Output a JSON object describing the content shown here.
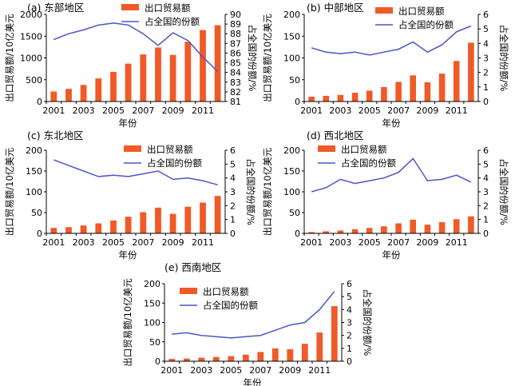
{
  "colors": {
    "bar": "#f05a28",
    "line": "#4a55c8",
    "axis": "#000000"
  },
  "chart_data": [
    {
      "type": "bar",
      "title": "(a) 东部地区",
      "categories": [
        "2001",
        "2002",
        "2003",
        "2004",
        "2005",
        "2006",
        "2007",
        "2008",
        "2009",
        "2010",
        "2011",
        "2012"
      ],
      "xticks": [
        "2001",
        "2003",
        "2005",
        "2007",
        "2009",
        "2011"
      ],
      "xlabel": "年份",
      "ylabel": "出口贸易额/10亿美元",
      "y2label": "占全国的份额/%",
      "ylim": [
        0,
        2000
      ],
      "yticks": [
        "0",
        "500",
        "1000",
        "1500",
        "2000"
      ],
      "y2lim": [
        81,
        90
      ],
      "y2ticks": [
        "81",
        "82",
        "83",
        "84",
        "85",
        "86",
        "87",
        "88",
        "89",
        "90"
      ],
      "legend_position": "top",
      "series": [
        {
          "name": "出口贸易额",
          "kind": "bar",
          "axis": "left",
          "values": [
            230,
            290,
            380,
            530,
            680,
            870,
            1080,
            1240,
            1070,
            1370,
            1640,
            1750
          ]
        },
        {
          "name": "占全国的份额",
          "kind": "line",
          "axis": "right",
          "values": [
            87.4,
            88.0,
            88.4,
            88.9,
            89.1,
            88.9,
            88.0,
            86.8,
            88.1,
            87.3,
            85.6,
            84.1
          ]
        }
      ]
    },
    {
      "type": "bar",
      "title": "(b) 中部地区",
      "categories": [
        "2001",
        "2002",
        "2003",
        "2004",
        "2005",
        "2006",
        "2007",
        "2008",
        "2009",
        "2010",
        "2011",
        "2012"
      ],
      "xticks": [
        "2001",
        "2003",
        "2005",
        "2007",
        "2009",
        "2011"
      ],
      "xlabel": "年份",
      "ylabel": "出口贸易额/10亿美元",
      "y2label": "占全国的份额/%",
      "ylim": [
        0,
        200
      ],
      "yticks": [
        "0",
        "50",
        "100",
        "150",
        "200"
      ],
      "y2lim": [
        0,
        6
      ],
      "y2ticks": [
        "0",
        "1",
        "2",
        "3",
        "4",
        "5",
        "6"
      ],
      "legend_position": "top-right",
      "series": [
        {
          "name": "出口贸易额",
          "kind": "bar",
          "axis": "left",
          "values": [
            11,
            13,
            15,
            20,
            25,
            33,
            45,
            60,
            44,
            64,
            93,
            135
          ]
        },
        {
          "name": "占全国的份额",
          "kind": "line",
          "axis": "right",
          "values": [
            3.7,
            3.4,
            3.3,
            3.4,
            3.2,
            3.4,
            3.6,
            4.1,
            3.4,
            3.9,
            4.8,
            5.2
          ]
        }
      ]
    },
    {
      "type": "bar",
      "title": "(c) 东北地区",
      "categories": [
        "2001",
        "2002",
        "2003",
        "2004",
        "2005",
        "2006",
        "2007",
        "2008",
        "2009",
        "2010",
        "2011",
        "2012"
      ],
      "xticks": [
        "2001",
        "2003",
        "2005",
        "2007",
        "2009",
        "2011"
      ],
      "xlabel": "年份",
      "ylabel": "出口贸易额/10亿美元",
      "y2label": "占全国的份额/%",
      "ylim": [
        0,
        200
      ],
      "yticks": [
        "0",
        "50",
        "100",
        "150",
        "200"
      ],
      "y2lim": [
        0,
        6
      ],
      "y2ticks": [
        "0",
        "1",
        "2",
        "3",
        "4",
        "5",
        "6"
      ],
      "legend_position": "top-right",
      "series": [
        {
          "name": "出口贸易额",
          "kind": "bar",
          "axis": "left",
          "values": [
            13,
            15,
            19,
            24,
            31,
            40,
            51,
            62,
            47,
            64,
            74,
            90
          ]
        },
        {
          "name": "占全国的份额",
          "kind": "line",
          "axis": "right",
          "values": [
            5.3,
            4.9,
            4.5,
            4.1,
            4.2,
            4.1,
            4.3,
            4.5,
            3.9,
            4.0,
            3.8,
            3.5
          ]
        }
      ]
    },
    {
      "type": "bar",
      "title": "(d) 西北地区",
      "categories": [
        "2001",
        "2002",
        "2003",
        "2004",
        "2005",
        "2006",
        "2007",
        "2008",
        "2009",
        "2010",
        "2011",
        "2012"
      ],
      "xticks": [
        "2001",
        "2003",
        "2005",
        "2007",
        "2009",
        "2011"
      ],
      "xlabel": "年份",
      "ylabel": "出口贸易额/10亿美元",
      "y2label": "占全国的份额/%",
      "ylim": [
        0,
        200
      ],
      "yticks": [
        "0",
        "50",
        "100",
        "150",
        "200"
      ],
      "y2lim": [
        0,
        6
      ],
      "y2ticks": [
        "0",
        "1",
        "2",
        "3",
        "4",
        "5",
        "6"
      ],
      "legend_position": "top-right",
      "series": [
        {
          "name": "出口贸易额",
          "kind": "bar",
          "axis": "left",
          "values": [
            3,
            5,
            7,
            10,
            13,
            17,
            24,
            33,
            21,
            27,
            34,
            41
          ]
        },
        {
          "name": "占全国的份额",
          "kind": "line",
          "axis": "right",
          "values": [
            3.0,
            3.3,
            3.9,
            3.6,
            3.8,
            4.0,
            4.4,
            5.4,
            3.8,
            3.9,
            4.2,
            3.7
          ]
        }
      ]
    },
    {
      "type": "bar",
      "title": "(e) 西南地区",
      "categories": [
        "2001",
        "2002",
        "2003",
        "2004",
        "2005",
        "2006",
        "2007",
        "2008",
        "2009",
        "2010",
        "2011",
        "2012"
      ],
      "xticks": [
        "2001",
        "2003",
        "2005",
        "2007",
        "2009",
        "2011"
      ],
      "xlabel": "年份",
      "ylabel": "出口贸易额/10亿美元",
      "y2label": "占全国的份额/%",
      "ylim": [
        0,
        200
      ],
      "yticks": [
        "0",
        "50",
        "100",
        "150",
        "200"
      ],
      "y2lim": [
        0,
        6
      ],
      "y2ticks": [
        "0",
        "1",
        "2",
        "3",
        "4",
        "5",
        "6"
      ],
      "legend_position": "top-left",
      "series": [
        {
          "name": "出口贸易额",
          "kind": "bar",
          "axis": "left",
          "values": [
            6,
            7,
            9,
            11,
            13,
            17,
            24,
            33,
            31,
            45,
            74,
            142
          ]
        },
        {
          "name": "占全国的份额",
          "kind": "line",
          "axis": "right",
          "values": [
            2.1,
            2.2,
            2.0,
            1.9,
            1.8,
            1.9,
            2.0,
            2.4,
            2.8,
            3.0,
            4.0,
            5.4
          ]
        }
      ]
    }
  ]
}
